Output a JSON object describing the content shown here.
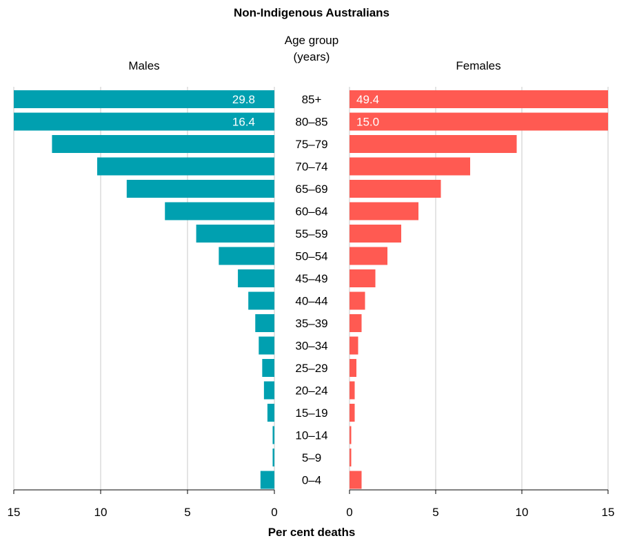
{
  "chart_data": {
    "type": "bar",
    "orientation": "horizontal",
    "title": "Non-Indigenous Australians",
    "xlabel": "Per cent deaths",
    "center_label_line1": "Age group",
    "center_label_line2": "(years)",
    "categories": [
      "85+",
      "80–85",
      "75–79",
      "70–74",
      "65–69",
      "60–64",
      "55–59",
      "50–54",
      "45–49",
      "40–44",
      "35–39",
      "30–34",
      "25–29",
      "20–24",
      "15–19",
      "10–14",
      "5–9",
      "0–4"
    ],
    "xlim": [
      0,
      15
    ],
    "x_ticks": [
      15,
      10,
      5,
      0
    ],
    "grid": true,
    "series": [
      {
        "name": "Males",
        "color": "#00a0b0",
        "side": "left",
        "values": [
          29.8,
          16.4,
          12.8,
          10.2,
          8.5,
          6.3,
          4.5,
          3.2,
          2.1,
          1.5,
          1.1,
          0.9,
          0.7,
          0.6,
          0.4,
          0.1,
          0.1,
          0.8
        ],
        "data_labels": [
          "29.8",
          "16.4",
          "",
          "",
          "",
          "",
          "",
          "",
          "",
          "",
          "",
          "",
          "",
          "",
          "",
          "",
          "",
          ""
        ]
      },
      {
        "name": "Females",
        "color": "#ff5a52",
        "side": "right",
        "values": [
          49.4,
          15.0,
          9.7,
          7.0,
          5.3,
          4.0,
          3.0,
          2.2,
          1.5,
          0.9,
          0.7,
          0.5,
          0.4,
          0.3,
          0.3,
          0.1,
          0.1,
          0.7
        ],
        "data_labels": [
          "49.4",
          "15.0",
          "",
          "",
          "",
          "",
          "",
          "",
          "",
          "",
          "",
          "",
          "",
          "",
          "",
          "",
          "",
          ""
        ]
      }
    ]
  }
}
